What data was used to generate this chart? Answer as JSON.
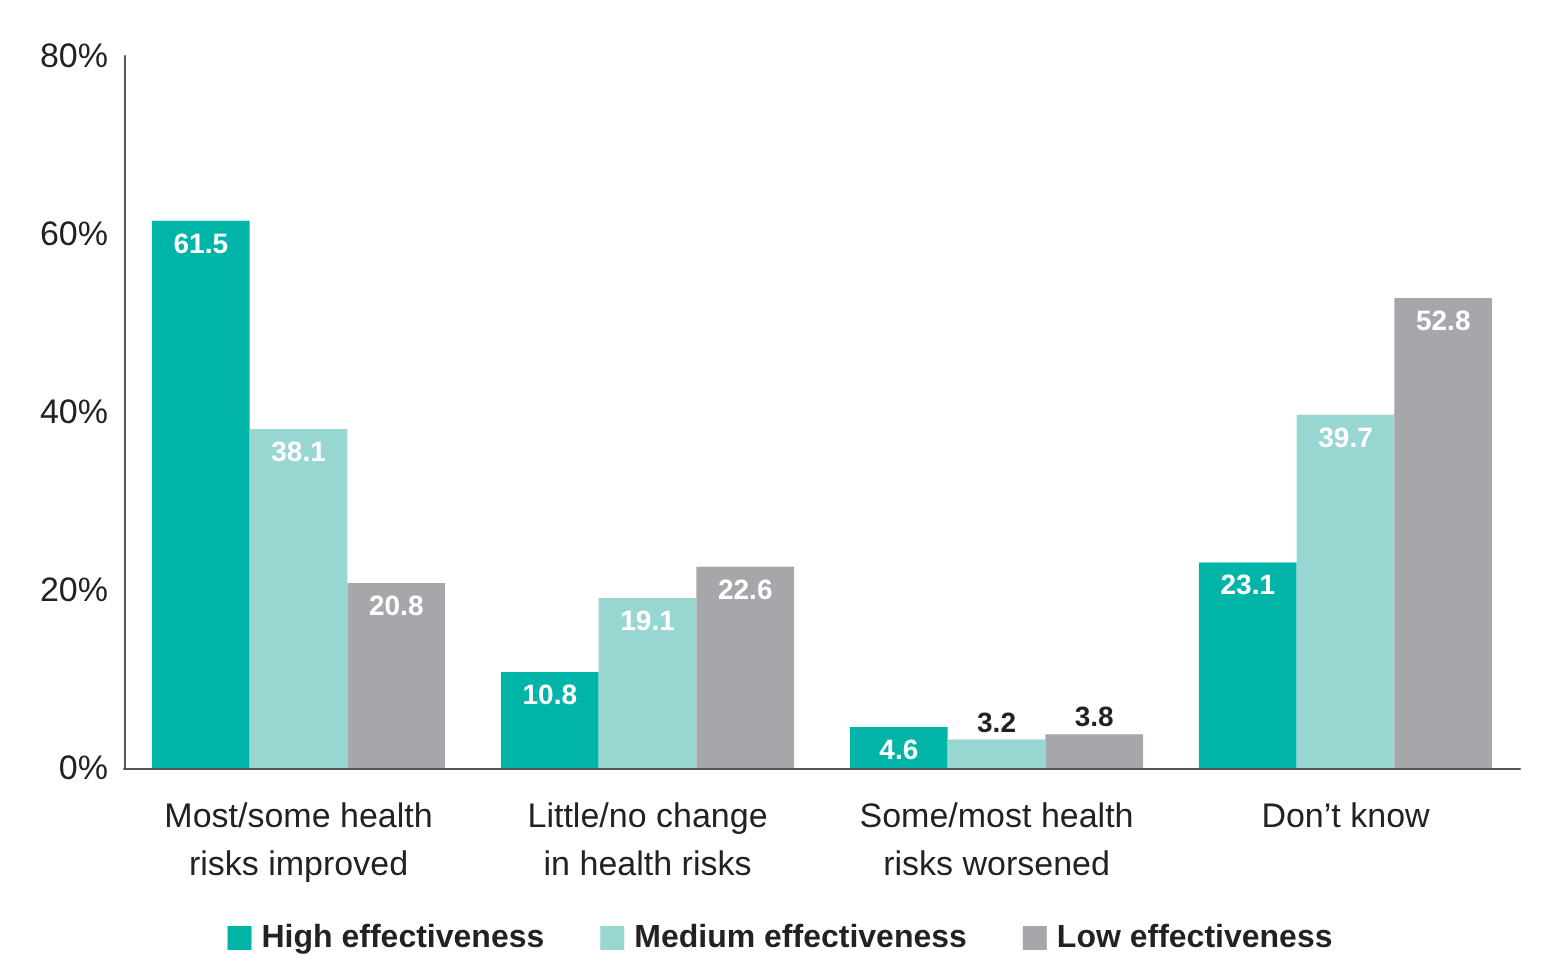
{
  "chart_data": {
    "type": "bar",
    "categories": [
      "Most/some health\nrisks improved",
      "Little/no change\nin health risks",
      "Some/most health\nrisks worsened",
      "Don’t know"
    ],
    "series": [
      {
        "name": "High effectiveness",
        "color": "#00b5a7",
        "values": [
          61.5,
          10.8,
          4.6,
          23.1
        ]
      },
      {
        "name": "Medium effectiveness",
        "color": "#98d6d1",
        "values": [
          38.1,
          19.1,
          3.2,
          39.7
        ]
      },
      {
        "name": "Low effectiveness",
        "color": "#a6a7ab",
        "values": [
          20.8,
          22.6,
          3.8,
          52.8
        ]
      }
    ],
    "ylim": [
      0,
      80
    ],
    "yticks": [
      {
        "value": 0,
        "label": "0%"
      },
      {
        "value": 20,
        "label": "20%"
      },
      {
        "value": 40,
        "label": "40%"
      },
      {
        "value": 60,
        "label": "60%"
      },
      {
        "value": 80,
        "label": "80%"
      }
    ],
    "data_labels": true,
    "grid": false,
    "legend": "bottom"
  }
}
